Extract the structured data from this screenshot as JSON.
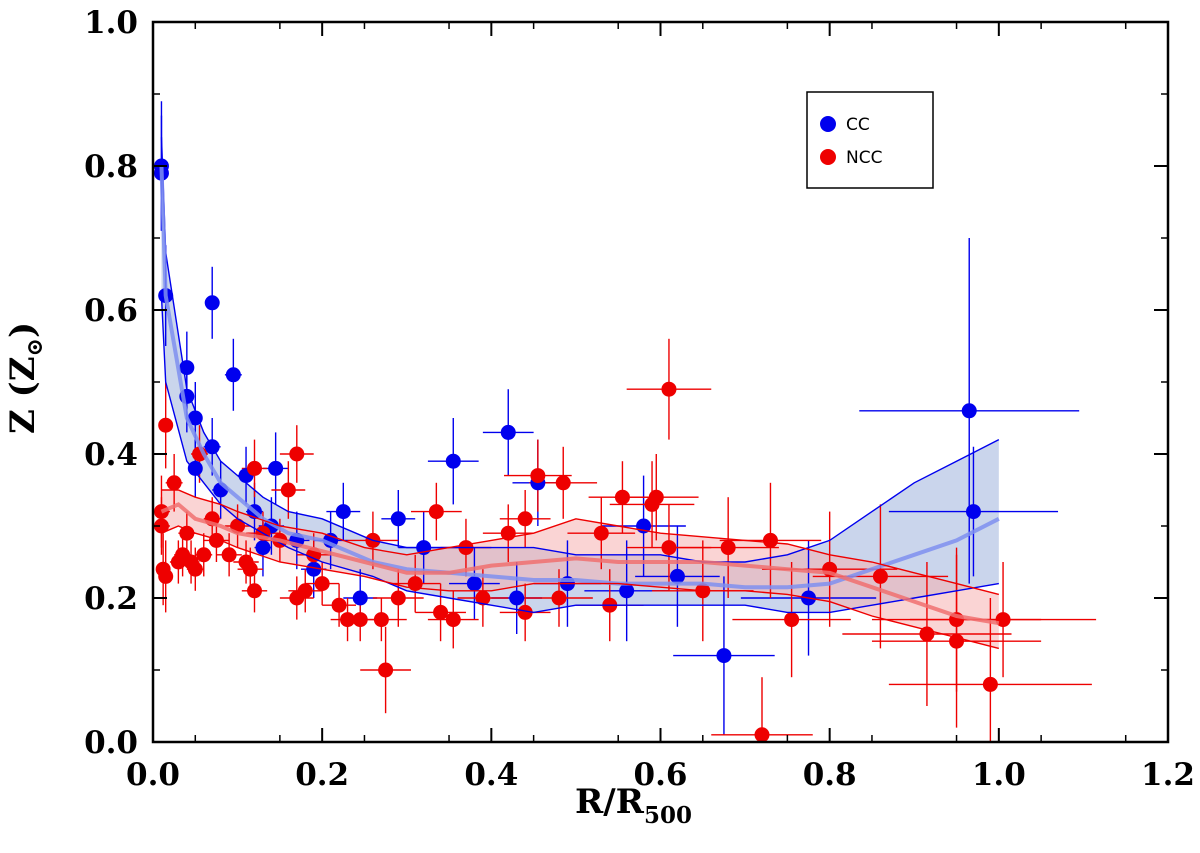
{
  "chart_data": {
    "type": "scatter",
    "title": "",
    "xlabel": {
      "main": "R/R",
      "sub": "500"
    },
    "ylabel": {
      "main": "Z (Z",
      "sub": "⊙",
      "close": ")"
    },
    "xlim": [
      0.0,
      1.2
    ],
    "ylim": [
      0.0,
      1.0
    ],
    "xticks": [
      "0.0",
      "0.2",
      "0.4",
      "0.6",
      "0.8",
      "1.0",
      "1.2"
    ],
    "yticks": [
      "0.0",
      "0.2",
      "0.4",
      "0.6",
      "0.8",
      "1.0"
    ],
    "legend": {
      "position": "top-right",
      "entries": [
        "CC",
        "NCC"
      ]
    },
    "series": [
      {
        "name": "CC",
        "color": "#0000ee",
        "band_color": "#9fb3dd",
        "line_color": "#7f8ff0",
        "points": [
          [
            0.01,
            0.8,
            0.004,
            0.09
          ],
          [
            0.01,
            0.79,
            0.004,
            0.08
          ],
          [
            0.015,
            0.62,
            0.005,
            0.07
          ],
          [
            0.04,
            0.52,
            0.008,
            0.05
          ],
          [
            0.04,
            0.48,
            0.008,
            0.05
          ],
          [
            0.05,
            0.45,
            0.008,
            0.05
          ],
          [
            0.05,
            0.38,
            0.008,
            0.04
          ],
          [
            0.07,
            0.61,
            0.008,
            0.05
          ],
          [
            0.07,
            0.41,
            0.01,
            0.04
          ],
          [
            0.08,
            0.35,
            0.01,
            0.04
          ],
          [
            0.095,
            0.51,
            0.01,
            0.05
          ],
          [
            0.11,
            0.37,
            0.01,
            0.04
          ],
          [
            0.12,
            0.32,
            0.01,
            0.04
          ],
          [
            0.13,
            0.27,
            0.01,
            0.04
          ],
          [
            0.14,
            0.3,
            0.015,
            0.04
          ],
          [
            0.145,
            0.38,
            0.015,
            0.05
          ],
          [
            0.17,
            0.28,
            0.015,
            0.04
          ],
          [
            0.19,
            0.24,
            0.015,
            0.04
          ],
          [
            0.21,
            0.28,
            0.02,
            0.04
          ],
          [
            0.225,
            0.32,
            0.02,
            0.04
          ],
          [
            0.245,
            0.2,
            0.02,
            0.04
          ],
          [
            0.29,
            0.31,
            0.02,
            0.04
          ],
          [
            0.32,
            0.27,
            0.03,
            0.05
          ],
          [
            0.355,
            0.39,
            0.03,
            0.06
          ],
          [
            0.38,
            0.22,
            0.03,
            0.05
          ],
          [
            0.42,
            0.43,
            0.03,
            0.06
          ],
          [
            0.43,
            0.2,
            0.03,
            0.05
          ],
          [
            0.455,
            0.36,
            0.03,
            0.06
          ],
          [
            0.49,
            0.22,
            0.04,
            0.06
          ],
          [
            0.56,
            0.21,
            0.05,
            0.07
          ],
          [
            0.58,
            0.3,
            0.05,
            0.07
          ],
          [
            0.62,
            0.23,
            0.05,
            0.07
          ],
          [
            0.675,
            0.12,
            0.06,
            0.11
          ],
          [
            0.775,
            0.2,
            0.08,
            0.08
          ],
          [
            0.965,
            0.46,
            0.13,
            0.24
          ],
          [
            0.97,
            0.32,
            0.1,
            0.09
          ]
        ],
        "fit": {
          "x": [
            0.01,
            0.015,
            0.04,
            0.06,
            0.08,
            0.1,
            0.13,
            0.16,
            0.2,
            0.26,
            0.3,
            0.35,
            0.4,
            0.45,
            0.5,
            0.55,
            0.6,
            0.65,
            0.7,
            0.75,
            0.8,
            0.85,
            0.9,
            0.95,
            1.0
          ],
          "mid": [
            0.8,
            0.62,
            0.45,
            0.4,
            0.36,
            0.34,
            0.31,
            0.29,
            0.28,
            0.25,
            0.24,
            0.235,
            0.23,
            0.225,
            0.225,
            0.22,
            0.22,
            0.22,
            0.215,
            0.215,
            0.22,
            0.24,
            0.26,
            0.28,
            0.31
          ],
          "upper": [
            0.84,
            0.68,
            0.49,
            0.43,
            0.39,
            0.37,
            0.34,
            0.32,
            0.31,
            0.28,
            0.27,
            0.27,
            0.27,
            0.27,
            0.26,
            0.26,
            0.26,
            0.25,
            0.25,
            0.26,
            0.28,
            0.32,
            0.36,
            0.39,
            0.42
          ],
          "lower": [
            0.62,
            0.5,
            0.39,
            0.36,
            0.33,
            0.31,
            0.29,
            0.27,
            0.25,
            0.23,
            0.21,
            0.2,
            0.19,
            0.18,
            0.19,
            0.19,
            0.19,
            0.19,
            0.19,
            0.18,
            0.18,
            0.19,
            0.2,
            0.21,
            0.22
          ]
        }
      },
      {
        "name": "NCC",
        "color": "#ee0000",
        "band_color": "#f6b0b0",
        "line_color": "#f07070",
        "points": [
          [
            0.01,
            0.32,
            0.01,
            0.05
          ],
          [
            0.01,
            0.3,
            0.01,
            0.04
          ],
          [
            0.012,
            0.24,
            0.008,
            0.05
          ],
          [
            0.015,
            0.23,
            0.008,
            0.05
          ],
          [
            0.015,
            0.44,
            0.008,
            0.06
          ],
          [
            0.025,
            0.36,
            0.01,
            0.04
          ],
          [
            0.03,
            0.25,
            0.01,
            0.03
          ],
          [
            0.035,
            0.26,
            0.01,
            0.03
          ],
          [
            0.04,
            0.29,
            0.01,
            0.03
          ],
          [
            0.045,
            0.25,
            0.01,
            0.03
          ],
          [
            0.05,
            0.24,
            0.01,
            0.03
          ],
          [
            0.055,
            0.4,
            0.01,
            0.04
          ],
          [
            0.06,
            0.26,
            0.01,
            0.03
          ],
          [
            0.07,
            0.31,
            0.01,
            0.03
          ],
          [
            0.075,
            0.28,
            0.015,
            0.03
          ],
          [
            0.09,
            0.26,
            0.015,
            0.03
          ],
          [
            0.1,
            0.3,
            0.015,
            0.03
          ],
          [
            0.11,
            0.25,
            0.015,
            0.03
          ],
          [
            0.115,
            0.24,
            0.015,
            0.03
          ],
          [
            0.12,
            0.21,
            0.015,
            0.03
          ],
          [
            0.12,
            0.38,
            0.015,
            0.04
          ],
          [
            0.13,
            0.29,
            0.02,
            0.03
          ],
          [
            0.15,
            0.28,
            0.02,
            0.03
          ],
          [
            0.16,
            0.35,
            0.02,
            0.04
          ],
          [
            0.17,
            0.4,
            0.02,
            0.04
          ],
          [
            0.17,
            0.2,
            0.02,
            0.03
          ],
          [
            0.18,
            0.21,
            0.02,
            0.03
          ],
          [
            0.19,
            0.26,
            0.02,
            0.03
          ],
          [
            0.2,
            0.22,
            0.02,
            0.03
          ],
          [
            0.22,
            0.19,
            0.02,
            0.03
          ],
          [
            0.23,
            0.17,
            0.02,
            0.03
          ],
          [
            0.245,
            0.17,
            0.02,
            0.03
          ],
          [
            0.26,
            0.28,
            0.03,
            0.04
          ],
          [
            0.27,
            0.17,
            0.03,
            0.03
          ],
          [
            0.275,
            0.1,
            0.03,
            0.06
          ],
          [
            0.29,
            0.2,
            0.03,
            0.04
          ],
          [
            0.31,
            0.22,
            0.03,
            0.04
          ],
          [
            0.335,
            0.32,
            0.03,
            0.04
          ],
          [
            0.34,
            0.18,
            0.03,
            0.04
          ],
          [
            0.355,
            0.17,
            0.03,
            0.04
          ],
          [
            0.37,
            0.27,
            0.03,
            0.04
          ],
          [
            0.39,
            0.2,
            0.03,
            0.04
          ],
          [
            0.42,
            0.29,
            0.03,
            0.04
          ],
          [
            0.44,
            0.18,
            0.03,
            0.04
          ],
          [
            0.44,
            0.31,
            0.03,
            0.04
          ],
          [
            0.455,
            0.37,
            0.04,
            0.05
          ],
          [
            0.48,
            0.2,
            0.04,
            0.04
          ],
          [
            0.485,
            0.36,
            0.04,
            0.05
          ],
          [
            0.53,
            0.29,
            0.04,
            0.05
          ],
          [
            0.54,
            0.19,
            0.04,
            0.05
          ],
          [
            0.555,
            0.34,
            0.04,
            0.05
          ],
          [
            0.59,
            0.33,
            0.05,
            0.06
          ],
          [
            0.595,
            0.34,
            0.05,
            0.06
          ],
          [
            0.61,
            0.49,
            0.05,
            0.07
          ],
          [
            0.61,
            0.27,
            0.05,
            0.06
          ],
          [
            0.65,
            0.21,
            0.06,
            0.07
          ],
          [
            0.68,
            0.27,
            0.06,
            0.07
          ],
          [
            0.72,
            0.01,
            0.06,
            0.08
          ],
          [
            0.73,
            0.28,
            0.06,
            0.08
          ],
          [
            0.755,
            0.17,
            0.07,
            0.08
          ],
          [
            0.8,
            0.24,
            0.08,
            0.08
          ],
          [
            0.86,
            0.23,
            0.08,
            0.1
          ],
          [
            0.915,
            0.15,
            0.1,
            0.1
          ],
          [
            0.95,
            0.14,
            0.1,
            0.12
          ],
          [
            0.95,
            0.17,
            0.1,
            0.1
          ],
          [
            0.99,
            0.08,
            0.12,
            0.12
          ],
          [
            1.005,
            0.17,
            0.11,
            0.08
          ]
        ],
        "fit": {
          "x": [
            0.01,
            0.03,
            0.05,
            0.08,
            0.1,
            0.15,
            0.2,
            0.25,
            0.3,
            0.35,
            0.4,
            0.45,
            0.5,
            0.55,
            0.6,
            0.65,
            0.7,
            0.75,
            0.8,
            0.85,
            0.9,
            0.95,
            1.0
          ],
          "mid": [
            0.32,
            0.33,
            0.31,
            0.3,
            0.29,
            0.28,
            0.265,
            0.25,
            0.235,
            0.235,
            0.245,
            0.25,
            0.255,
            0.25,
            0.25,
            0.25,
            0.245,
            0.24,
            0.235,
            0.215,
            0.195,
            0.175,
            0.165
          ],
          "upper": [
            0.35,
            0.35,
            0.34,
            0.33,
            0.32,
            0.3,
            0.29,
            0.27,
            0.26,
            0.27,
            0.28,
            0.29,
            0.31,
            0.3,
            0.29,
            0.285,
            0.28,
            0.275,
            0.26,
            0.25,
            0.235,
            0.22,
            0.205
          ],
          "lower": [
            0.29,
            0.3,
            0.29,
            0.28,
            0.27,
            0.25,
            0.24,
            0.23,
            0.215,
            0.21,
            0.21,
            0.22,
            0.22,
            0.22,
            0.215,
            0.21,
            0.21,
            0.205,
            0.195,
            0.175,
            0.16,
            0.145,
            0.13
          ]
        }
      }
    ]
  }
}
